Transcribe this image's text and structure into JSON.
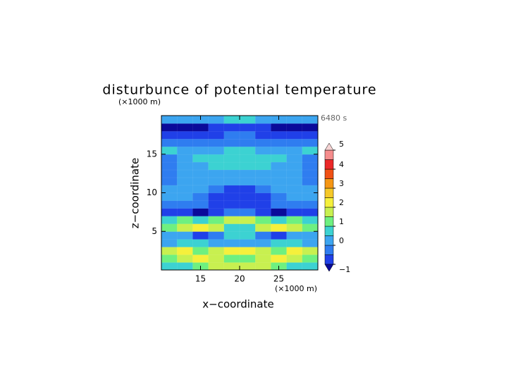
{
  "chart_data": {
    "type": "contour",
    "title": "disturbunce of potential temperature",
    "x_label": "x−coordinate",
    "y_label": "z−coordinate",
    "x_unit": "(×1000 m)",
    "y_unit": "(×1000 m)",
    "annotation": "6480 s",
    "xlim": [
      10,
      30
    ],
    "ylim": [
      0,
      20
    ],
    "xticks": [
      15,
      20,
      25
    ],
    "yticks": [
      5,
      10,
      15
    ],
    "x": [
      11,
      13,
      15,
      17,
      19,
      21,
      23,
      25,
      27,
      29
    ],
    "y": [
      0.5,
      1.5,
      2.5,
      3.5,
      4.5,
      5.5,
      6.5,
      7.5,
      8.5,
      9.5,
      10.5,
      11.5,
      12.5,
      13.5,
      14.5,
      15.5,
      16.5,
      17.5,
      18.5,
      19.5
    ],
    "z": [
      [
        0.6,
        0.8,
        1.2,
        1.6,
        1.8,
        1.8,
        1.6,
        1.2,
        0.8,
        0.6
      ],
      [
        1.2,
        1.8,
        2.2,
        1.6,
        1.4,
        1.4,
        1.6,
        2.2,
        1.8,
        1.2
      ],
      [
        1.6,
        2.1,
        1.4,
        1.8,
        2.2,
        2.2,
        1.8,
        1.4,
        2.1,
        1.6
      ],
      [
        0.3,
        0.6,
        0.9,
        0.4,
        0.0,
        0.0,
        0.4,
        0.9,
        0.6,
        0.3
      ],
      [
        0.4,
        0.1,
        -0.6,
        -0.4,
        0.6,
        0.6,
        -0.4,
        -0.6,
        0.1,
        0.4
      ],
      [
        1.2,
        1.8,
        2.1,
        1.6,
        0.8,
        0.8,
        1.6,
        2.1,
        1.8,
        1.2
      ],
      [
        0.6,
        1.1,
        0.9,
        1.4,
        1.6,
        1.6,
        1.4,
        0.9,
        1.1,
        0.6
      ],
      [
        -0.7,
        -0.9,
        -1.1,
        -0.6,
        -0.2,
        -0.2,
        -0.6,
        -1.1,
        -0.9,
        -0.7
      ],
      [
        -0.3,
        -0.2,
        -0.4,
        -0.7,
        -0.9,
        -0.9,
        -0.7,
        -0.4,
        -0.2,
        -0.3
      ],
      [
        0.2,
        0.1,
        -0.2,
        -0.6,
        -0.8,
        -0.8,
        -0.6,
        -0.2,
        0.1,
        0.2
      ],
      [
        0.1,
        0.2,
        0.1,
        -0.3,
        -0.8,
        -0.8,
        -0.3,
        0.1,
        0.2,
        0.1
      ],
      [
        -0.1,
        0.1,
        0.3,
        0.2,
        0.1,
        0.1,
        0.2,
        0.3,
        0.1,
        -0.1
      ],
      [
        -0.2,
        0.0,
        0.3,
        0.4,
        0.3,
        0.3,
        0.4,
        0.3,
        0.0,
        -0.2
      ],
      [
        -0.2,
        0.2,
        0.4,
        0.7,
        0.8,
        0.8,
        0.7,
        0.4,
        0.2,
        -0.2
      ],
      [
        -0.1,
        0.3,
        0.5,
        0.8,
        0.9,
        0.9,
        0.8,
        0.5,
        0.3,
        -0.1
      ],
      [
        0.7,
        0.3,
        0.2,
        0.4,
        0.5,
        0.5,
        0.4,
        0.2,
        0.3,
        0.7
      ],
      [
        -0.2,
        -0.3,
        -0.4,
        -0.3,
        -0.2,
        -0.2,
        -0.3,
        -0.4,
        -0.3,
        -0.2
      ],
      [
        -0.6,
        -0.8,
        -1.0,
        -0.7,
        -0.5,
        -0.5,
        -0.7,
        -1.0,
        -0.8,
        -0.6
      ],
      [
        -1.2,
        -1.3,
        -1.2,
        -0.9,
        -0.7,
        -0.7,
        -0.9,
        -1.2,
        -1.3,
        -1.2
      ],
      [
        0.1,
        0.2,
        0.3,
        0.4,
        0.7,
        0.7,
        0.4,
        0.3,
        0.2,
        0.1
      ]
    ],
    "levels": [
      -1,
      -0.5,
      0,
      0.5,
      1,
      1.5,
      2,
      2.5,
      3,
      3.5,
      4,
      4.5,
      5
    ],
    "colors": [
      "#2040e8",
      "#2f7df0",
      "#3ca5f0",
      "#3cd2d2",
      "#6ef080",
      "#c8f050",
      "#f5f03c",
      "#f5c828",
      "#f59614",
      "#f05014",
      "#eb2828",
      "#f58c8c"
    ],
    "under_color": "#0a0a9a",
    "over_color": "#f5d2d2",
    "colorbar_ticks": [
      {
        "value": -1,
        "label": "−1"
      },
      0,
      1,
      2,
      3,
      4,
      5
    ]
  }
}
